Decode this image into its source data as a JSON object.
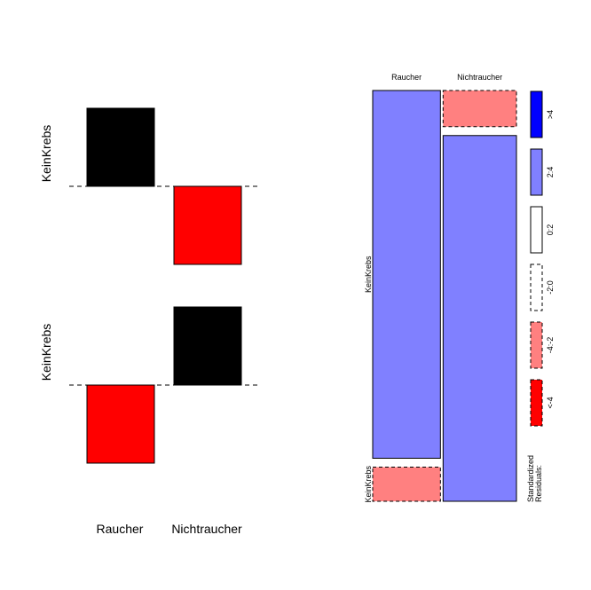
{
  "chart_data": [
    {
      "type": "assocplot",
      "row_labels": [
        "KeinKrebs",
        "KeinKrebs"
      ],
      "col_labels": [
        "Raucher",
        "Nichtraucher"
      ],
      "rows": [
        {
          "label": "KeinKrebs",
          "residuals": [
            1.0,
            -1.0
          ]
        },
        {
          "label": "KeinKrebs",
          "residuals": [
            -1.0,
            1.0
          ]
        }
      ],
      "positive_color": "#000000",
      "negative_color": "#ff0000"
    },
    {
      "type": "mosaic",
      "col_labels": [
        "Raucher",
        "Nichtraucher"
      ],
      "row_labels": [
        "KeinKrebs",
        "KeinKrebs"
      ],
      "col_widths": [
        0.48,
        0.52
      ],
      "cells": [
        {
          "col": 0,
          "row": 0,
          "height": 0.915,
          "residual_class": "2:4",
          "fill": "#8080ff",
          "dashed": false
        },
        {
          "col": 0,
          "row": 1,
          "height": 0.085,
          "residual_class": "-4:-2",
          "fill": "#ff8080",
          "dashed": true
        },
        {
          "col": 1,
          "row": 0,
          "height": 0.09,
          "residual_class": "-4:-2",
          "fill": "#ff8080",
          "dashed": true
        },
        {
          "col": 1,
          "row": 1,
          "height": 0.91,
          "residual_class": "2:4",
          "fill": "#8080ff",
          "dashed": false
        }
      ],
      "legend": {
        "title": "Standardized Residuals:",
        "entries": [
          {
            "label": ">4",
            "fill": "#0000ff",
            "dashed": false
          },
          {
            "label": "2:4",
            "fill": "#8080ff",
            "dashed": false
          },
          {
            "label": "0:2",
            "fill": "#ffffff",
            "dashed": false
          },
          {
            "label": "-2:0",
            "fill": "#ffffff",
            "dashed": true
          },
          {
            "label": "-4:-2",
            "fill": "#ff8080",
            "dashed": true
          },
          {
            "label": "<-4",
            "fill": "#ff0000",
            "dashed": true
          }
        ]
      }
    }
  ]
}
